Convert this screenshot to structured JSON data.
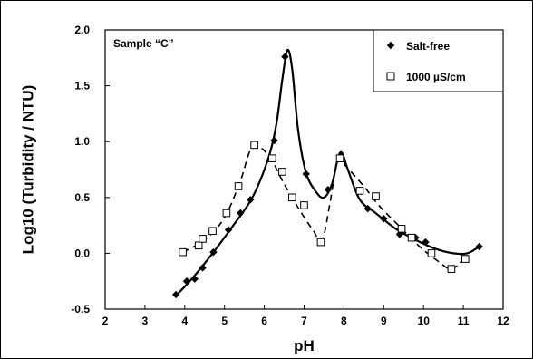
{
  "chart_data": {
    "type": "scatter",
    "title": "",
    "xlabel": "pH",
    "ylabel": "Log10 (Turbidity / NTU)",
    "annotation": "Sample “C”",
    "xlim": [
      2,
      12
    ],
    "ylim": [
      -0.5,
      2.0
    ],
    "x_ticks": [
      2,
      3,
      4,
      5,
      6,
      7,
      8,
      9,
      10,
      11,
      12
    ],
    "y_ticks": [
      -0.5,
      0.0,
      0.5,
      1.0,
      1.5,
      2.0
    ],
    "x_tick_labels": [
      "2",
      "3",
      "4",
      "5",
      "6",
      "7",
      "8",
      "9",
      "10",
      "11",
      "12"
    ],
    "y_tick_labels": [
      "-0.5",
      "0.0",
      "0.5",
      "1.0",
      "1.5",
      "2.0"
    ],
    "grid": false,
    "legend_position": "top-right",
    "series": [
      {
        "name": "Salt-free",
        "marker": "filled-diamond",
        "line": "solid",
        "color": "#000000",
        "points": [
          [
            3.78,
            -0.37
          ],
          [
            4.05,
            -0.25
          ],
          [
            4.25,
            -0.23
          ],
          [
            4.45,
            -0.13
          ],
          [
            4.72,
            0.01
          ],
          [
            5.1,
            0.21
          ],
          [
            5.4,
            0.36
          ],
          [
            5.65,
            0.48
          ],
          [
            6.25,
            1.01
          ],
          [
            6.52,
            1.76
          ],
          [
            7.05,
            0.71
          ],
          [
            7.6,
            0.57
          ],
          [
            7.9,
            0.87
          ],
          [
            8.6,
            0.4
          ],
          [
            9.0,
            0.31
          ],
          [
            9.4,
            0.17
          ],
          [
            9.8,
            0.14
          ],
          [
            10.05,
            0.1
          ],
          [
            11.4,
            0.06
          ]
        ],
        "curve": [
          [
            3.78,
            -0.38
          ],
          [
            4.2,
            -0.22
          ],
          [
            4.7,
            0.0
          ],
          [
            5.2,
            0.24
          ],
          [
            5.7,
            0.5
          ],
          [
            6.1,
            0.85
          ],
          [
            6.3,
            1.15
          ],
          [
            6.45,
            1.55
          ],
          [
            6.58,
            1.82
          ],
          [
            6.7,
            1.65
          ],
          [
            6.85,
            1.1
          ],
          [
            7.05,
            0.72
          ],
          [
            7.3,
            0.55
          ],
          [
            7.5,
            0.5
          ],
          [
            7.7,
            0.62
          ],
          [
            7.85,
            0.85
          ],
          [
            7.95,
            0.9
          ],
          [
            8.1,
            0.75
          ],
          [
            8.4,
            0.48
          ],
          [
            8.8,
            0.36
          ],
          [
            9.3,
            0.22
          ],
          [
            9.8,
            0.12
          ],
          [
            10.3,
            0.04
          ],
          [
            10.75,
            0.0
          ],
          [
            11.1,
            0.0
          ],
          [
            11.4,
            0.06
          ]
        ]
      },
      {
        "name": "1000 µS/cm",
        "marker": "open-square",
        "line": "dashed",
        "color": "#000000",
        "points": [
          [
            3.95,
            0.01
          ],
          [
            4.35,
            0.07
          ],
          [
            4.45,
            0.13
          ],
          [
            4.7,
            0.2
          ],
          [
            5.05,
            0.36
          ],
          [
            5.35,
            0.6
          ],
          [
            5.75,
            0.97
          ],
          [
            6.2,
            0.85
          ],
          [
            6.45,
            0.73
          ],
          [
            6.7,
            0.5
          ],
          [
            7.0,
            0.43
          ],
          [
            7.42,
            0.1
          ],
          [
            7.9,
            0.85
          ],
          [
            8.4,
            0.56
          ],
          [
            8.8,
            0.51
          ],
          [
            9.45,
            0.22
          ],
          [
            9.7,
            0.14
          ],
          [
            10.2,
            0.0
          ],
          [
            10.7,
            -0.14
          ],
          [
            11.05,
            -0.05
          ]
        ],
        "curve": [
          [
            3.95,
            0.01
          ],
          [
            4.5,
            0.12
          ],
          [
            5.0,
            0.32
          ],
          [
            5.4,
            0.65
          ],
          [
            5.7,
            0.95
          ],
          [
            6.1,
            0.88
          ],
          [
            6.5,
            0.62
          ],
          [
            6.9,
            0.38
          ],
          [
            7.2,
            0.22
          ],
          [
            7.45,
            0.12
          ],
          [
            7.65,
            0.45
          ],
          [
            7.85,
            0.85
          ],
          [
            8.05,
            0.78
          ],
          [
            8.5,
            0.6
          ],
          [
            8.9,
            0.42
          ],
          [
            9.4,
            0.24
          ],
          [
            9.9,
            0.06
          ],
          [
            10.4,
            -0.08
          ],
          [
            10.7,
            -0.14
          ],
          [
            11.05,
            -0.05
          ]
        ]
      }
    ]
  }
}
